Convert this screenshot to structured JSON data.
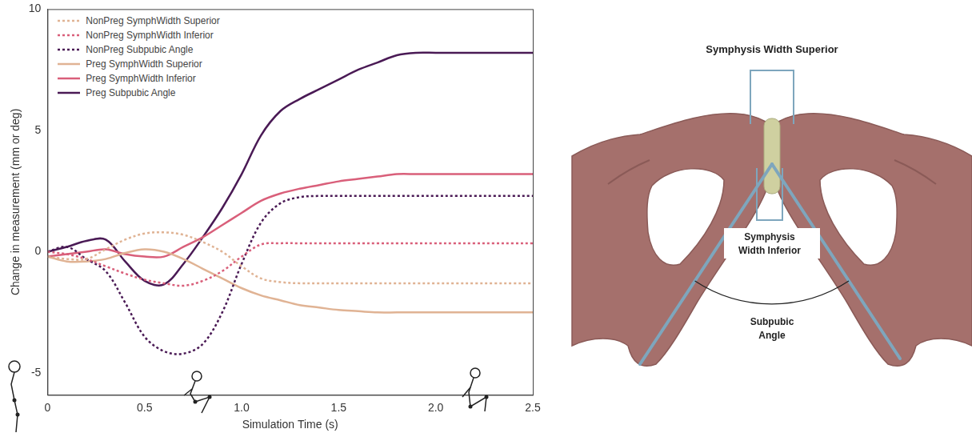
{
  "chart_data": {
    "type": "line",
    "x_label": "Simulation Time (s)",
    "y_label": "Change in measurement (mm or deg)",
    "x": [
      0,
      0.1,
      0.2,
      0.3,
      0.4,
      0.5,
      0.6,
      0.7,
      0.8,
      0.9,
      1.0,
      1.1,
      1.2,
      1.3,
      1.4,
      1.5,
      1.6,
      1.7,
      1.8,
      1.9,
      2.0,
      2.1,
      2.2,
      2.3,
      2.4,
      2.5
    ],
    "series": [
      {
        "name": "NonPreg SymphWidth Superior",
        "color": "#e0b394",
        "line_style": "dotted",
        "values": [
          -0.2,
          -0.3,
          -0.3,
          0.1,
          0.5,
          0.75,
          0.8,
          0.7,
          0.4,
          0,
          -0.6,
          -1.1,
          -1.25,
          -1.3,
          -1.3,
          -1.3,
          -1.3,
          -1.3,
          -1.3,
          -1.3,
          -1.3,
          -1.3,
          -1.3,
          -1.3,
          -1.3,
          -1.3
        ]
      },
      {
        "name": "NonPreg SymphWidth Inferior",
        "color": "#d95f7a",
        "line_style": "dotted",
        "values": [
          0,
          -0.1,
          -0.3,
          -0.6,
          -0.9,
          -1.15,
          -1.3,
          -1.4,
          -1.2,
          -0.8,
          -0.2,
          0.3,
          0.35,
          0.35,
          0.35,
          0.35,
          0.35,
          0.35,
          0.35,
          0.35,
          0.35,
          0.35,
          0.35,
          0.35,
          0.35,
          0.35
        ]
      },
      {
        "name": "NonPreg Subpubic Angle",
        "color": "#4a1a55",
        "line_style": "dotted",
        "values": [
          0,
          0.2,
          -0.3,
          -0.8,
          -2.1,
          -3.5,
          -4.1,
          -4.2,
          -3.8,
          -2.5,
          -0.5,
          1.2,
          2.0,
          2.25,
          2.3,
          2.3,
          2.3,
          2.3,
          2.3,
          2.3,
          2.3,
          2.3,
          2.3,
          2.3,
          2.3,
          2.3
        ]
      },
      {
        "name": "Preg SymphWidth Superior",
        "color": "#e0b394",
        "line_style": "solid",
        "values": [
          -0.2,
          -0.4,
          -0.4,
          -0.3,
          -0.05,
          0.1,
          0,
          -0.3,
          -0.7,
          -1.1,
          -1.5,
          -1.8,
          -2.0,
          -2.2,
          -2.3,
          -2.4,
          -2.45,
          -2.5,
          -2.5,
          -2.5,
          -2.5,
          -2.5,
          -2.5,
          -2.5,
          -2.5,
          -2.5
        ]
      },
      {
        "name": "Preg SymphWidth Inferior",
        "color": "#d95f7a",
        "line_style": "solid",
        "values": [
          -0.2,
          -0.1,
          0,
          0.1,
          -0.1,
          -0.2,
          -0.2,
          0.2,
          0.6,
          1.1,
          1.6,
          2.1,
          2.4,
          2.6,
          2.75,
          2.9,
          3.0,
          3.1,
          3.2,
          3.2,
          3.2,
          3.2,
          3.2,
          3.2,
          3.2,
          3.2
        ]
      },
      {
        "name": "Preg Subpubic Angle",
        "color": "#4a1a55",
        "line_style": "solid",
        "values": [
          0,
          0.2,
          0.45,
          0.5,
          -0.4,
          -1.2,
          -1.35,
          -0.5,
          0.6,
          1.8,
          3.2,
          4.8,
          5.8,
          6.3,
          6.7,
          7.1,
          7.5,
          7.8,
          8.1,
          8.2,
          8.2,
          8.2,
          8.2,
          8.2,
          8.2,
          8.2
        ]
      }
    ],
    "xlim": [
      0,
      2.5
    ],
    "xticks": [
      0,
      0.5,
      1,
      1.5,
      2,
      2.5
    ],
    "ylim": [
      -5.9,
      10
    ],
    "yticks": [
      -5,
      0,
      5,
      10
    ],
    "grid": false,
    "legend": "upper left"
  },
  "diagram": {
    "labels": {
      "superior": "Symphysis Width Superior",
      "inferior": "Symphysis Width Inferior",
      "angle": "Subpubic Angle"
    }
  }
}
